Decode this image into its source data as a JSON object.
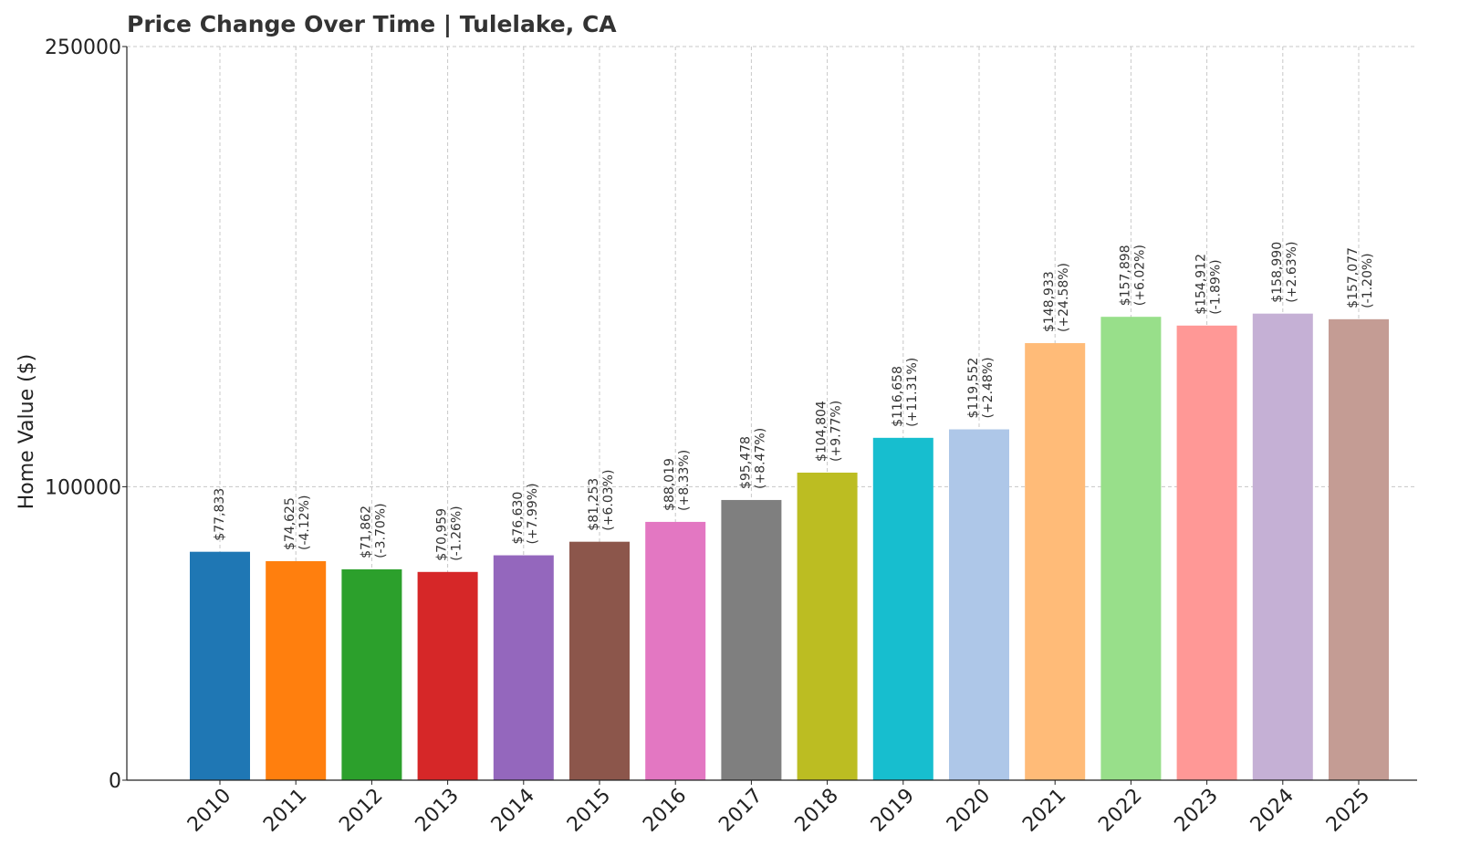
{
  "chart_data": {
    "type": "bar",
    "title": "Price Change Over Time | Tulelake, CA",
    "xlabel": "",
    "ylabel": "Home Value ($)",
    "ylim": [
      0,
      250000
    ],
    "yticks": [
      "0",
      "100000",
      "250000"
    ],
    "ytick_values": [
      0,
      100000,
      250000
    ],
    "grid": true,
    "categories": [
      "2010",
      "2011",
      "2012",
      "2013",
      "2014",
      "2015",
      "2016",
      "2017",
      "2018",
      "2019",
      "2020",
      "2021",
      "2022",
      "2023",
      "2024",
      "2025"
    ],
    "values": [
      77833,
      74625,
      71862,
      70959,
      76630,
      81253,
      88019,
      95478,
      104804,
      116658,
      119552,
      148933,
      157898,
      154912,
      158990,
      157077
    ],
    "value_labels": [
      "$77,833",
      "$74,625",
      "$71,862",
      "$70,959",
      "$76,630",
      "$81,253",
      "$88,019",
      "$95,478",
      "$104,804",
      "$116,658",
      "$119,552",
      "$148,933",
      "$157,898",
      "$154,912",
      "$158,990",
      "$157,077"
    ],
    "change_labels": [
      "",
      "(-4.12%)",
      "(-3.70%)",
      "(-1.26%)",
      "(+7.99%)",
      "(+6.03%)",
      "(+8.33%)",
      "(+8.47%)",
      "(+9.77%)",
      "(+11.31%)",
      "(+2.48%)",
      "(+24.58%)",
      "(+6.02%)",
      "(-1.89%)",
      "(+2.63%)",
      "(-1.20%)"
    ],
    "colors": [
      "#1f77b4",
      "#ff7f0e",
      "#2ca02c",
      "#d62728",
      "#9467bd",
      "#8c564b",
      "#e377c2",
      "#7f7f7f",
      "#bcbd22",
      "#17becf",
      "#aec7e8",
      "#ffbb78",
      "#98df8a",
      "#ff9896",
      "#c5b0d5",
      "#c49c94"
    ]
  }
}
